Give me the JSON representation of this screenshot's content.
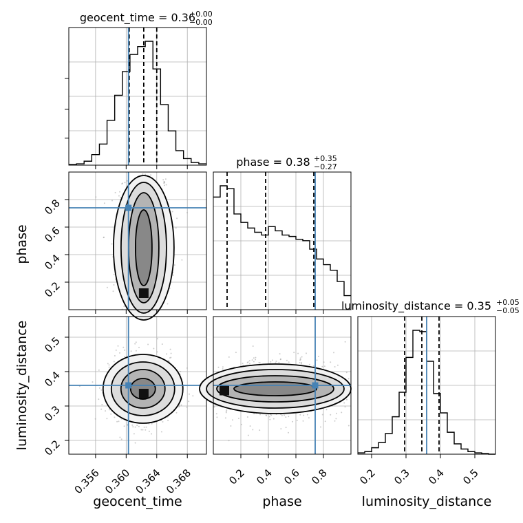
{
  "chart_data": {
    "type": "corner",
    "parameters": [
      "geocent_time",
      "phase",
      "luminosity_distance"
    ],
    "truths": {
      "geocent_time": 0.3603,
      "phase": 0.74,
      "luminosity_distance": 0.36
    },
    "accent_color": "#4682b4",
    "panels": {
      "geocent_time_hist": {
        "title_main": "geocent_time = 0.36",
        "title_sup": "+0.00",
        "title_sub": "−0.00",
        "xlim": [
          0.3525,
          0.3705
        ],
        "bin_edges": [
          0.3525,
          0.3535,
          0.3545,
          0.3555,
          0.3565,
          0.3575,
          0.3585,
          0.3595,
          0.3605,
          0.3615,
          0.3625,
          0.3635,
          0.3645,
          0.3655,
          0.3665,
          0.3675,
          0.3685,
          0.3695,
          0.3705
        ],
        "heights": [
          0.005,
          0.01,
          0.03,
          0.08,
          0.16,
          0.34,
          0.53,
          0.71,
          0.84,
          0.9,
          0.94,
          0.73,
          0.46,
          0.26,
          0.11,
          0.05,
          0.02,
          0.01
        ],
        "quantiles": [
          0.3604,
          0.3623,
          0.364
        ],
        "xticks": [
          0.356,
          0.36,
          0.364,
          0.368
        ],
        "xtick_labels": [
          "0.356",
          "0.360",
          "0.364",
          "0.368"
        ]
      },
      "phase_hist": {
        "title_main": "phase = 0.38",
        "title_sup": "+0.35",
        "title_sub": "−0.27",
        "xlim": [
          0.0,
          1.0
        ],
        "bin_edges": [
          0.0,
          0.05,
          0.1,
          0.15,
          0.2,
          0.25,
          0.3,
          0.35,
          0.4,
          0.45,
          0.5,
          0.55,
          0.6,
          0.65,
          0.7,
          0.75,
          0.8,
          0.85,
          0.9,
          0.95,
          1.0
        ],
        "heights": [
          0.8,
          0.88,
          0.86,
          0.68,
          0.62,
          0.58,
          0.55,
          0.53,
          0.59,
          0.56,
          0.53,
          0.52,
          0.5,
          0.49,
          0.43,
          0.36,
          0.32,
          0.28,
          0.2,
          0.1
        ],
        "quantiles": [
          0.1,
          0.38,
          0.73
        ],
        "xticks": [
          0.2,
          0.4,
          0.6,
          0.8
        ],
        "xtick_labels": [
          "0.2",
          "0.4",
          "0.6",
          "0.8"
        ]
      },
      "luminosity_distance_hist": {
        "title_main": "luminosity_distance = 0.35",
        "title_sup": "+0.05",
        "title_sub": "−0.05",
        "xlim": [
          0.16,
          0.56
        ],
        "bin_edges": [
          0.16,
          0.18,
          0.2,
          0.22,
          0.24,
          0.26,
          0.28,
          0.3,
          0.32,
          0.34,
          0.36,
          0.38,
          0.4,
          0.42,
          0.44,
          0.46,
          0.48,
          0.5,
          0.52,
          0.54,
          0.56
        ],
        "heights": [
          0.01,
          0.02,
          0.05,
          0.09,
          0.16,
          0.29,
          0.48,
          0.75,
          0.96,
          0.95,
          0.72,
          0.47,
          0.32,
          0.17,
          0.08,
          0.04,
          0.02,
          0.01,
          0.005,
          0.0
        ],
        "quantiles": [
          0.296,
          0.346,
          0.396
        ],
        "xticks": [
          0.2,
          0.3,
          0.4,
          0.5
        ],
        "xtick_labels": [
          "0.2",
          "0.3",
          "0.4",
          "0.5"
        ]
      }
    },
    "axes": {
      "geocent_time": {
        "label": "geocent_time",
        "lim": [
          0.3525,
          0.3705
        ],
        "ticks": [
          0.356,
          0.36,
          0.364,
          0.368
        ],
        "tick_labels": [
          "0.356",
          "0.360",
          "0.364",
          "0.368"
        ]
      },
      "phase": {
        "label": "phase",
        "lim": [
          0.0,
          1.0
        ],
        "ticks": [
          0.2,
          0.4,
          0.6,
          0.8
        ],
        "tick_labels": [
          "0.2",
          "0.4",
          "0.6",
          "0.8"
        ]
      },
      "luminosity_distance": {
        "label": "luminosity_distance",
        "lim": [
          0.16,
          0.56
        ],
        "ticks": [
          0.2,
          0.3,
          0.4,
          0.5
        ],
        "tick_labels": [
          "0.2",
          "0.3",
          "0.4",
          "0.5"
        ]
      }
    },
    "grid": true
  }
}
